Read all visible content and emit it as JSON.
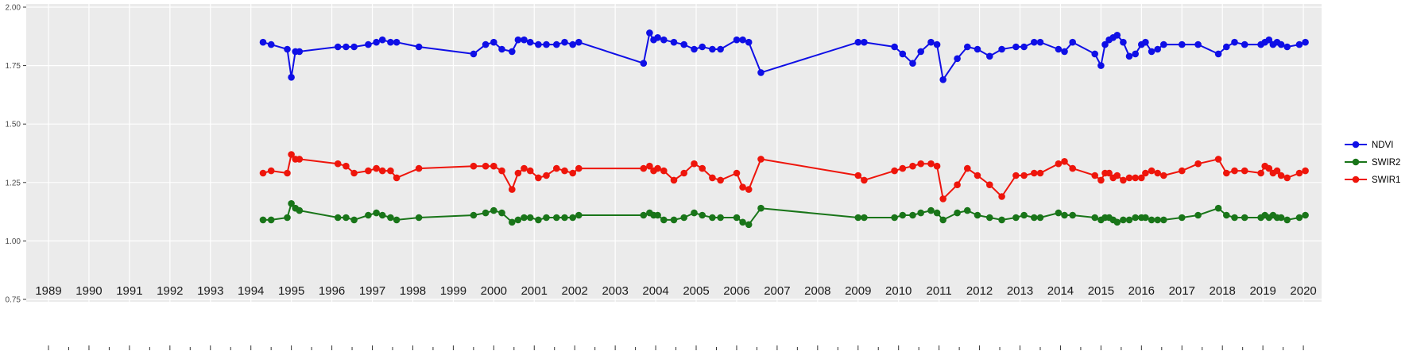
{
  "figure": {
    "background": "#ffffff"
  },
  "chart_data": {
    "type": "line",
    "title": "",
    "xlabel": "",
    "ylabel": "",
    "grid": true,
    "panel_background": "#ebebeb",
    "grid_color": "#ffffff",
    "axis_text_color": "#4d4d4d",
    "x_axis_text_color": "#1a1a1a",
    "axis_tick_color": "#333333",
    "legend_position": "right",
    "xlim": [
      1988.45,
      2020.45
    ],
    "ylim": [
      0.75,
      2.0
    ],
    "x_ticks": [
      1989,
      1990,
      1991,
      1992,
      1993,
      1994,
      1995,
      1996,
      1997,
      1998,
      1999,
      2000,
      2001,
      2002,
      2003,
      2004,
      2005,
      2006,
      2007,
      2008,
      2009,
      2010,
      2011,
      2012,
      2013,
      2014,
      2015,
      2016,
      2017,
      2018,
      2019,
      2020
    ],
    "x_tick_labels": [
      "1989",
      "1990",
      "1991",
      "1992",
      "1993",
      "1994",
      "1995",
      "1996",
      "1997",
      "1998",
      "1999",
      "2000",
      "2001",
      "2002",
      "2003",
      "2004",
      "2005",
      "2006",
      "2007",
      "2008",
      "2009",
      "2010",
      "2011",
      "2012",
      "2013",
      "2014",
      "2015",
      "2016",
      "2017",
      "2018",
      "2019",
      "2020"
    ],
    "y_ticks": [
      0.75,
      1.0,
      1.25,
      1.5,
      1.75,
      2.0
    ],
    "y_tick_labels": [
      "0.75",
      "1.00",
      "1.25",
      "1.50",
      "1.75",
      "2.00"
    ],
    "x": [
      1994.3,
      1994.5,
      1994.9,
      1995.0,
      1995.1,
      1995.2,
      1996.15,
      1996.35,
      1996.55,
      1996.9,
      1997.1,
      1997.25,
      1997.45,
      1997.6,
      1998.15,
      1999.5,
      1999.8,
      2000.0,
      2000.2,
      2000.45,
      2000.6,
      2000.75,
      2000.9,
      2001.1,
      2001.3,
      2001.55,
      2001.75,
      2001.95,
      2002.1,
      2003.7,
      2003.85,
      2003.95,
      2004.05,
      2004.2,
      2004.45,
      2004.7,
      2004.95,
      2005.15,
      2005.4,
      2005.6,
      2006.0,
      2006.15,
      2006.3,
      2006.6,
      2009.0,
      2009.15,
      2009.9,
      2010.1,
      2010.35,
      2010.55,
      2010.8,
      2010.95,
      2011.1,
      2011.45,
      2011.7,
      2011.95,
      2012.25,
      2012.55,
      2012.9,
      2013.1,
      2013.35,
      2013.5,
      2013.95,
      2014.1,
      2014.3,
      2014.85,
      2015.0,
      2015.1,
      2015.2,
      2015.3,
      2015.4,
      2015.55,
      2015.7,
      2015.85,
      2016.0,
      2016.1,
      2016.25,
      2016.4,
      2016.55,
      2017.0,
      2017.4,
      2017.9,
      2018.1,
      2018.3,
      2018.55,
      2018.95,
      2019.05,
      2019.15,
      2019.25,
      2019.35,
      2019.45,
      2019.6,
      2019.9,
      2020.05
    ],
    "series": [
      {
        "name": "NDVI",
        "color": "#0f0fe6",
        "marker": "circle",
        "y": [
          1.85,
          1.84,
          1.82,
          1.7,
          1.81,
          1.81,
          1.83,
          1.83,
          1.83,
          1.84,
          1.85,
          1.86,
          1.85,
          1.85,
          1.83,
          1.8,
          1.84,
          1.85,
          1.82,
          1.81,
          1.86,
          1.86,
          1.85,
          1.84,
          1.84,
          1.84,
          1.85,
          1.84,
          1.85,
          1.76,
          1.89,
          1.86,
          1.87,
          1.86,
          1.85,
          1.84,
          1.82,
          1.83,
          1.82,
          1.82,
          1.86,
          1.86,
          1.85,
          1.72,
          1.85,
          1.85,
          1.83,
          1.8,
          1.76,
          1.81,
          1.85,
          1.84,
          1.69,
          1.78,
          1.83,
          1.82,
          1.79,
          1.82,
          1.83,
          1.83,
          1.85,
          1.85,
          1.82,
          1.81,
          1.85,
          1.8,
          1.75,
          1.84,
          1.86,
          1.87,
          1.88,
          1.85,
          1.79,
          1.8,
          1.84,
          1.85,
          1.81,
          1.82,
          1.84,
          1.84,
          1.84,
          1.8,
          1.83,
          1.85,
          1.84,
          1.84,
          1.85,
          1.86,
          1.84,
          1.85,
          1.84,
          1.83,
          1.84,
          1.85
        ]
      },
      {
        "name": "SWIR2",
        "color": "#197519",
        "marker": "circle",
        "y": [
          1.09,
          1.09,
          1.1,
          1.16,
          1.14,
          1.13,
          1.1,
          1.1,
          1.09,
          1.11,
          1.12,
          1.11,
          1.1,
          1.09,
          1.1,
          1.11,
          1.12,
          1.13,
          1.12,
          1.08,
          1.09,
          1.1,
          1.1,
          1.09,
          1.1,
          1.1,
          1.1,
          1.1,
          1.11,
          1.11,
          1.12,
          1.11,
          1.11,
          1.09,
          1.09,
          1.1,
          1.12,
          1.11,
          1.1,
          1.1,
          1.1,
          1.08,
          1.07,
          1.14,
          1.1,
          1.1,
          1.1,
          1.11,
          1.11,
          1.12,
          1.13,
          1.12,
          1.09,
          1.12,
          1.13,
          1.11,
          1.1,
          1.09,
          1.1,
          1.11,
          1.1,
          1.1,
          1.12,
          1.11,
          1.11,
          1.1,
          1.09,
          1.1,
          1.1,
          1.09,
          1.08,
          1.09,
          1.09,
          1.1,
          1.1,
          1.1,
          1.09,
          1.09,
          1.09,
          1.1,
          1.11,
          1.14,
          1.11,
          1.1,
          1.1,
          1.1,
          1.11,
          1.1,
          1.11,
          1.1,
          1.1,
          1.09,
          1.1,
          1.11
        ]
      },
      {
        "name": "SWIR1",
        "color": "#ee150b",
        "marker": "circle",
        "y": [
          1.29,
          1.3,
          1.29,
          1.37,
          1.35,
          1.35,
          1.33,
          1.32,
          1.29,
          1.3,
          1.31,
          1.3,
          1.3,
          1.27,
          1.31,
          1.32,
          1.32,
          1.32,
          1.3,
          1.22,
          1.29,
          1.31,
          1.3,
          1.27,
          1.28,
          1.31,
          1.3,
          1.29,
          1.31,
          1.31,
          1.32,
          1.3,
          1.31,
          1.3,
          1.26,
          1.29,
          1.33,
          1.31,
          1.27,
          1.26,
          1.29,
          1.23,
          1.22,
          1.35,
          1.28,
          1.26,
          1.3,
          1.31,
          1.32,
          1.33,
          1.33,
          1.32,
          1.18,
          1.24,
          1.31,
          1.28,
          1.24,
          1.19,
          1.28,
          1.28,
          1.29,
          1.29,
          1.33,
          1.34,
          1.31,
          1.28,
          1.26,
          1.29,
          1.29,
          1.27,
          1.28,
          1.26,
          1.27,
          1.27,
          1.27,
          1.29,
          1.3,
          1.29,
          1.28,
          1.3,
          1.33,
          1.35,
          1.29,
          1.3,
          1.3,
          1.29,
          1.32,
          1.31,
          1.29,
          1.3,
          1.28,
          1.27,
          1.29,
          1.3
        ]
      }
    ],
    "legend_labels": [
      "NDVI",
      "SWIR2",
      "SWIR1"
    ]
  }
}
